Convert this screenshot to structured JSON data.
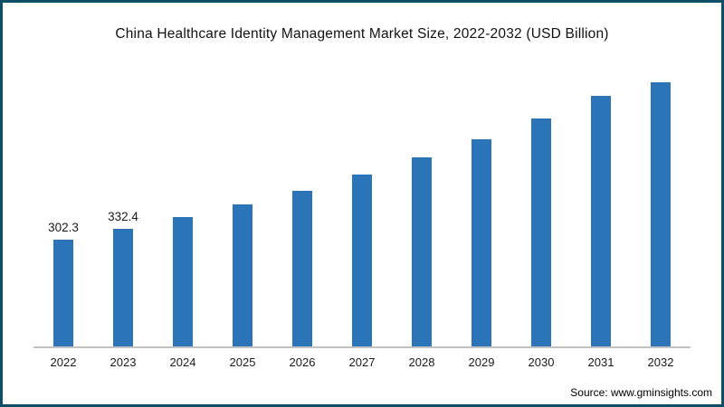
{
  "chart_data": {
    "type": "bar",
    "title": "China Healthcare Identity Management Market Size, 2022-2032 (USD Billion)",
    "categories": [
      "2022",
      "2023",
      "2024",
      "2025",
      "2026",
      "2027",
      "2028",
      "2029",
      "2030",
      "2031",
      "2032"
    ],
    "values": [
      302.3,
      332.4,
      365.6,
      402.1,
      442.2,
      486.3,
      534.8,
      588.1,
      646.8,
      711.3,
      782.2
    ],
    "value_labels": [
      "302.3",
      "332.4",
      "",
      "",
      "",
      "",
      "",
      "",
      "",
      "",
      ""
    ],
    "xlabel": "",
    "ylabel": "",
    "ylim": [
      0,
      800
    ],
    "grid": false,
    "legend": "none",
    "bar_color": "#2b74b8",
    "axis_color": "#c2c2c2"
  },
  "source": "Source: www.gminsights.com",
  "colors": {
    "frame_border": "#0d4f66",
    "bar": "#2b74b8",
    "axis": "#c2c2c2",
    "text": "#111111"
  }
}
